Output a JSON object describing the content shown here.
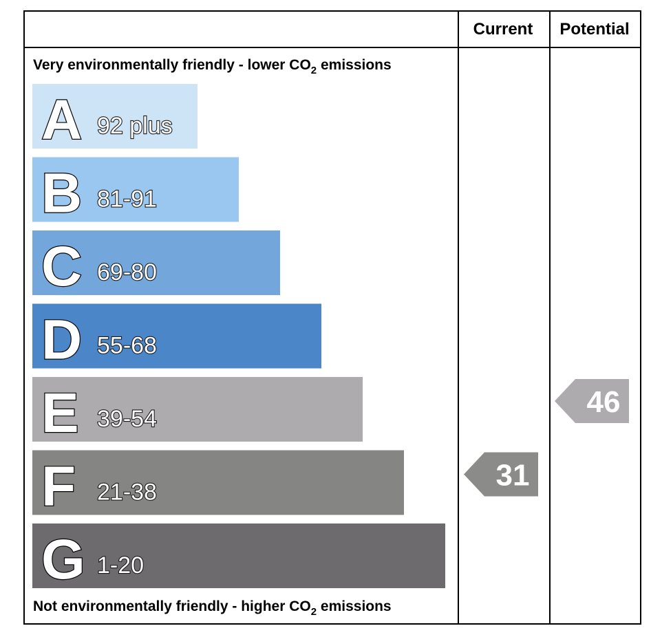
{
  "chart_data": {
    "type": "bar",
    "header": {
      "current_label": "Current",
      "potential_label": "Potential"
    },
    "top_caption": {
      "before": "Very environmentally friendly - lower CO",
      "sub": "2",
      "after": " emissions"
    },
    "bottom_caption": {
      "before": "Not environmentally friendly - higher CO",
      "sub": "2",
      "after": " emissions"
    },
    "bands": [
      {
        "letter": "A",
        "range": "92 plus",
        "min": 92,
        "max": 100,
        "color": "#cde4f6"
      },
      {
        "letter": "B",
        "range": "81-91",
        "min": 81,
        "max": 91,
        "color": "#99c7ef"
      },
      {
        "letter": "C",
        "range": "69-80",
        "min": 69,
        "max": 80,
        "color": "#73a6da"
      },
      {
        "letter": "D",
        "range": "55-68",
        "min": 55,
        "max": 68,
        "color": "#4a86c8"
      },
      {
        "letter": "E",
        "range": "39-54",
        "min": 39,
        "max": 54,
        "color": "#adabad"
      },
      {
        "letter": "F",
        "range": "21-38",
        "min": 21,
        "max": 38,
        "color": "#858683"
      },
      {
        "letter": "G",
        "range": "1-20",
        "min": 1,
        "max": 20,
        "color": "#6d6b6d"
      }
    ],
    "current": {
      "value": 31,
      "label": "31",
      "band": "F",
      "color": "#8b8c89"
    },
    "potential": {
      "value": 46,
      "label": "46",
      "band": "E",
      "color": "#adabad"
    }
  }
}
